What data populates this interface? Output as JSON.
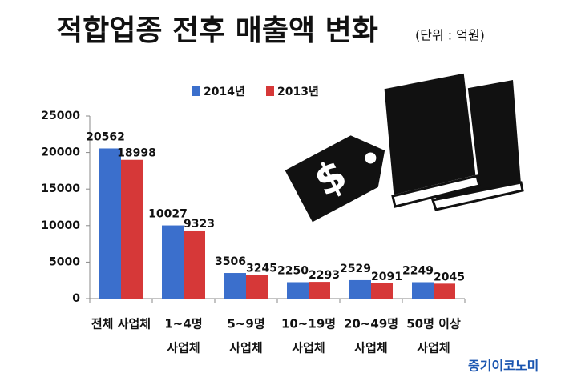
{
  "chart_data": {
    "type": "bar",
    "title": "적합업종 전후 매출액 변화",
    "subtitle": "(단위 : 억원)",
    "categories": [
      [
        "전체 사업체"
      ],
      [
        "1~4명",
        "사업체"
      ],
      [
        "5~9명",
        "사업체"
      ],
      [
        "10~19명",
        "사업체"
      ],
      [
        "20~49명",
        "사업체"
      ],
      [
        "50명 이상",
        "사업체"
      ]
    ],
    "series": [
      {
        "name": "2014년",
        "color": "#3b6fcc",
        "values": [
          20562,
          10027,
          3506,
          2250,
          2529,
          2249
        ]
      },
      {
        "name": "2013년",
        "color": "#d63838",
        "values": [
          18998,
          9323,
          3245,
          2293,
          2091,
          2045
        ]
      }
    ],
    "ylim": [
      0,
      25000
    ],
    "yticks": [
      0,
      5000,
      10000,
      15000,
      20000,
      25000
    ],
    "grid": false,
    "source": "중기이코노미"
  }
}
